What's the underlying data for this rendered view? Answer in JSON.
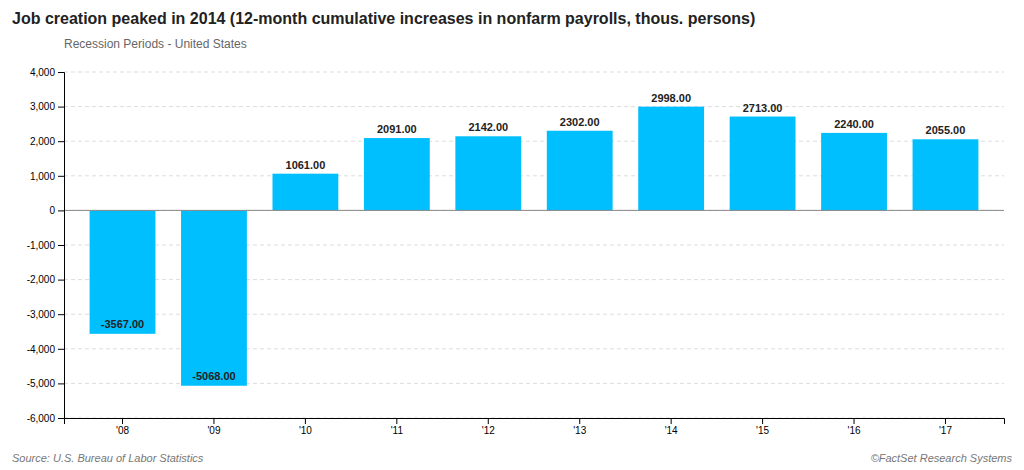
{
  "chart_data": {
    "type": "bar",
    "title": "Job creation peaked in 2014 (12-month cumulative increases in nonfarm payrolls, thous. persons)",
    "subtitle": "Recession Periods - United States",
    "annotations": [
      "Source: U.S. Bureau of Labor Statistics",
      "©FactSet Research Systems"
    ],
    "categories": [
      "'08",
      "'09",
      "'10",
      "'11",
      "'12",
      "'13",
      "'14",
      "'15",
      "'16",
      "'17"
    ],
    "values": [
      -3567,
      -5068,
      1061,
      2091,
      2142,
      2302,
      2998,
      2713,
      2240,
      2055
    ],
    "value_labels": [
      "-3567.00",
      "-5068.00",
      "1061.00",
      "2091.00",
      "2142.00",
      "2302.00",
      "2998.00",
      "2713.00",
      "2240.00",
      "2055.00"
    ],
    "data_labels": true,
    "color": "#00bfff",
    "ylim": [
      -6000,
      4000
    ],
    "yticks": [
      {
        "value": -6000,
        "label": "-6,000"
      },
      {
        "value": -5000,
        "label": "-5,000"
      },
      {
        "value": -4000,
        "label": "-4,000"
      },
      {
        "value": -3000,
        "label": "-3,000"
      },
      {
        "value": -2000,
        "label": "-2,000"
      },
      {
        "value": -1000,
        "label": "-1,000"
      },
      0,
      {
        "value": 1000,
        "label": "1,000"
      },
      {
        "value": 2000,
        "label": "2,000"
      },
      {
        "value": 3000,
        "label": "3,000"
      },
      {
        "value": 4000,
        "label": "4,000"
      }
    ],
    "grid": true
  }
}
